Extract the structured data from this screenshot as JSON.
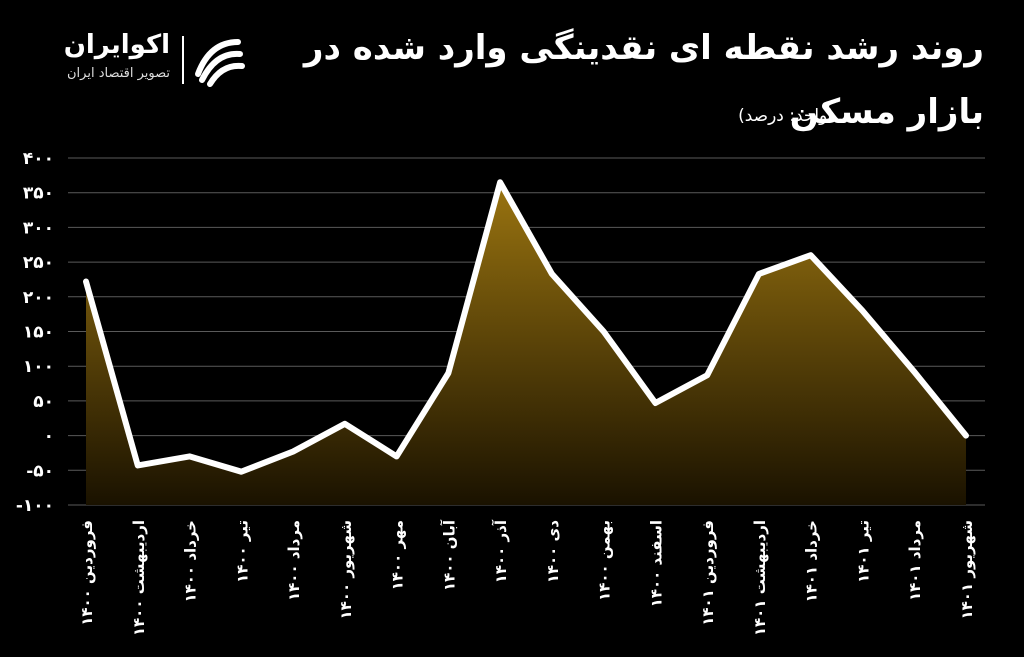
{
  "header": {
    "title_line1": "روند رشد نقطه ای نقدینگی وارد شده در",
    "title_line2": "بازار مسکن",
    "unit": "(واحد: درصد)"
  },
  "brand": {
    "name": "اکوایران",
    "tagline": "تصویر اقتصاد ایران",
    "logo_icon": "ecoiran-logo-icon"
  },
  "colors": {
    "background": "#000000",
    "line": "#ffffff",
    "fill_top": "#9a7410",
    "fill_bottom": "#1a1200",
    "grid": "#5a5a5a"
  },
  "chart_data": {
    "type": "area",
    "x": [
      "فروردین ۱۴۰۰",
      "اردیبهشت ۱۴۰۰",
      "خرداد ۱۴۰۰",
      "تیر ۱۴۰۰",
      "مرداد ۱۴۰۰",
      "شهریور ۱۴۰۰",
      "مهر ۱۴۰۰",
      "آبان ۱۴۰۰",
      "آذر ۱۴۰۰",
      "دی ۱۴۰۰",
      "بهمن ۱۴۰۰",
      "اسفند ۱۴۰۰",
      "فروردین ۱۴۰۱",
      "اردیبهشت ۱۴۰۱",
      "خرداد ۱۴۰۱",
      "تیر ۱۴۰۱",
      "مرداد ۱۴۰۱",
      "شهریور ۱۴۰۱"
    ],
    "values": [
      222,
      -43,
      -30,
      -52,
      -23,
      17,
      -30,
      90,
      365,
      233,
      150,
      47,
      87,
      233,
      260,
      180,
      92,
      0
    ],
    "ylim": [
      -100,
      400
    ],
    "yticks": [
      -100,
      -50,
      0,
      50,
      100,
      150,
      200,
      250,
      300,
      350,
      400
    ],
    "ytick_labels": [
      "-۱۰۰",
      "-۵۰",
      "۰",
      "۵۰",
      "۱۰۰",
      "۱۵۰",
      "۲۰۰",
      "۲۵۰",
      "۳۰۰",
      "۳۵۰",
      "۴۰۰"
    ],
    "grid": true,
    "legend": "none"
  }
}
